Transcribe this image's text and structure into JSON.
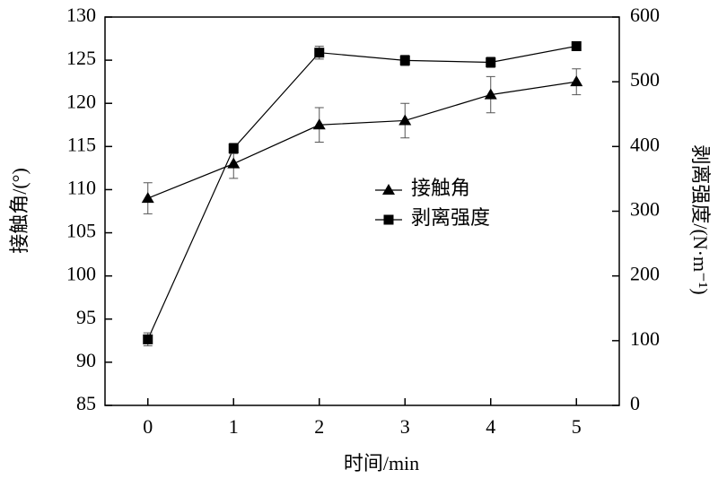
{
  "chart_data": {
    "type": "line",
    "x_label": "时间/min",
    "y_label": "接触角/(°)",
    "y2_label": "剥离强度/(N·m⁻¹)",
    "x": [
      0,
      1,
      2,
      3,
      4,
      5
    ],
    "xlim": [
      -0.5,
      5.5
    ],
    "xticks": [
      0,
      1,
      2,
      3,
      4,
      5
    ],
    "ylim": [
      85,
      130
    ],
    "yticks": [
      85,
      90,
      95,
      100,
      105,
      110,
      115,
      120,
      125,
      130
    ],
    "y2lim": [
      0,
      600
    ],
    "y2ticks": [
      0,
      100,
      200,
      300,
      400,
      500,
      600
    ],
    "legend_position": "center",
    "series": [
      {
        "name": "接触角",
        "color": "#000000",
        "marker": "triangle",
        "values": [
          109,
          113,
          117.5,
          118,
          121,
          122.5
        ],
        "errors": [
          1.8,
          1.7,
          2,
          2,
          2.1,
          1.5
        ]
      },
      {
        "name": "剥离强度",
        "color": "#000000",
        "marker": "square",
        "axis": "y2",
        "values": [
          102,
          397,
          545,
          533,
          530,
          555
        ],
        "errors": [
          10,
          8,
          10,
          8,
          8,
          4
        ]
      }
    ]
  }
}
